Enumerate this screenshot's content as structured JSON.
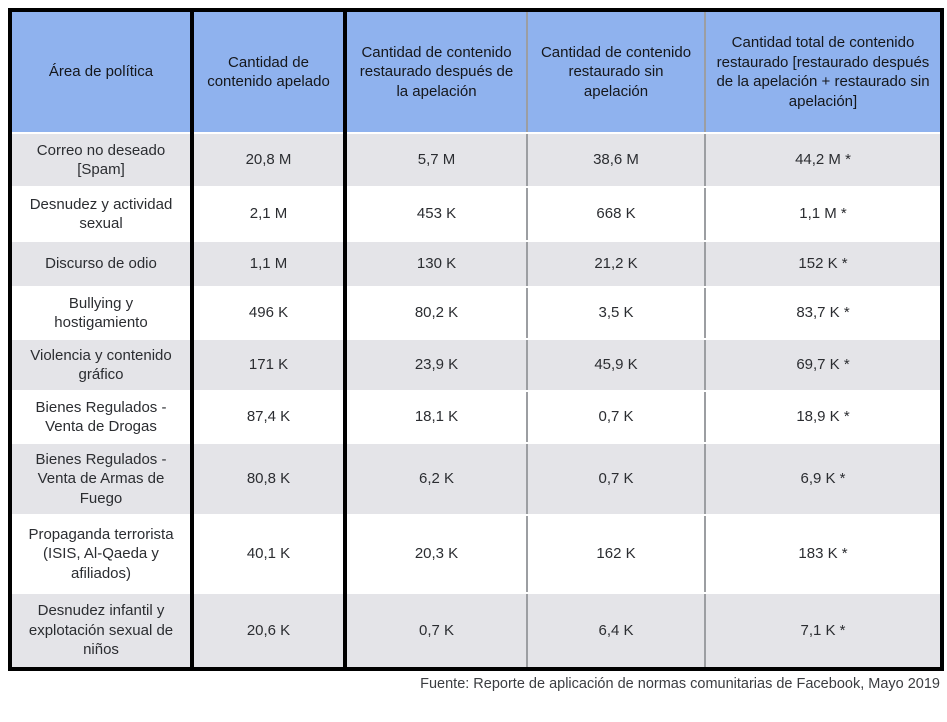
{
  "colors": {
    "header_background": "#8fb2ee",
    "row_alt_background": "#e4e4e8",
    "row_background": "#ffffff",
    "thick_border": "#000000",
    "thin_border": "#9c9ea2",
    "text": "#2b2d31"
  },
  "chart_data": {
    "type": "table",
    "columns": [
      "Área de política",
      "Cantidad de contenido apelado",
      "Cantidad de contenido restaurado después de la apelación",
      "Cantidad de contenido restaurado sin apelación",
      "Cantidad total de contenido restaurado [restaurado después de la apelación + restaurado sin apelación]"
    ],
    "rows": [
      [
        "Correo no deseado [Spam]",
        "20,8 M",
        "5,7 M",
        "38,6 M",
        "44,2 M *"
      ],
      [
        "Desnudez y actividad sexual",
        "2,1 M",
        "453 K",
        "668 K",
        "1,1 M *"
      ],
      [
        "Discurso de odio",
        "1,1 M",
        "130 K",
        "21,2 K",
        "152 K *"
      ],
      [
        "Bullying y hostigamiento",
        "496 K",
        "80,2 K",
        "3,5 K",
        "83,7 K *"
      ],
      [
        "Violencia y contenido gráfico",
        "171 K",
        "23,9 K",
        "45,9 K",
        "69,7 K *"
      ],
      [
        "Bienes Regulados - Venta de Drogas",
        "87,4 K",
        "18,1 K",
        "0,7 K",
        "18,9 K *"
      ],
      [
        "Bienes Regulados - Venta de Armas de Fuego",
        "80,8 K",
        "6,2 K",
        "0,7 K",
        "6,9 K *"
      ],
      [
        "Propaganda terrorista (ISIS, Al-Qaeda y afiliados)",
        "40,1 K",
        "20,3 K",
        "162 K",
        "183 K *"
      ],
      [
        "Desnudez infantil y explotación sexual de niños",
        "20,6 K",
        "0,7 K",
        "6,4 K",
        "7,1 K *"
      ]
    ]
  },
  "footer": {
    "source": "Fuente: Reporte de aplicación de normas comunitarias de Facebook, Mayo 2019"
  }
}
